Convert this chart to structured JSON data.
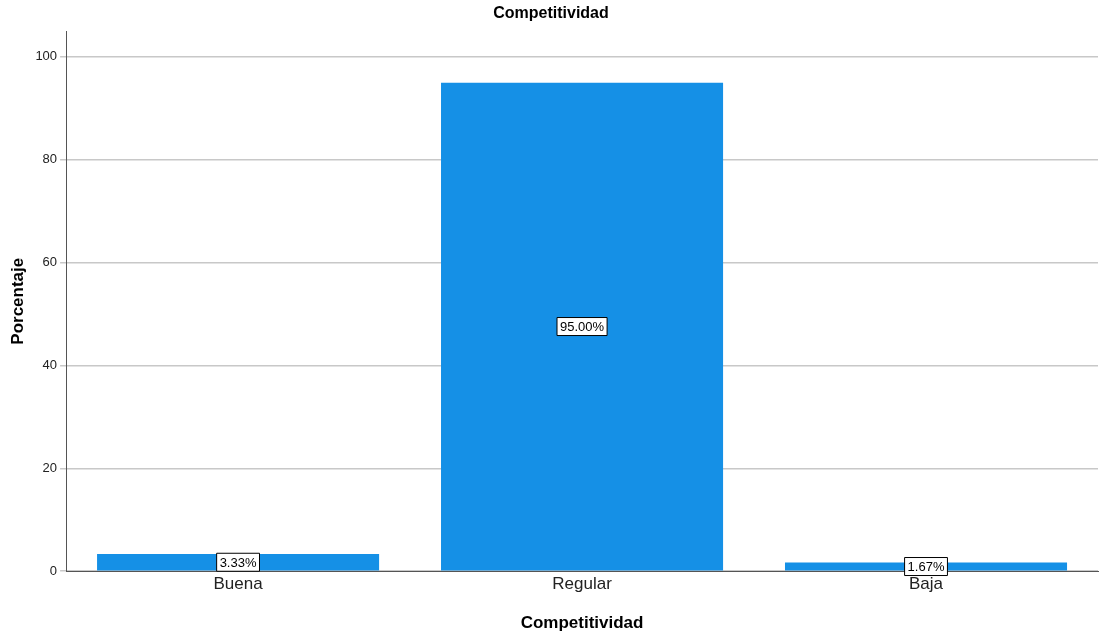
{
  "chart_data": {
    "type": "bar",
    "title": "Competitividad",
    "xlabel": "Competitividad",
    "ylabel": "Porcentaje",
    "categories": [
      "Buena",
      "Regular",
      "Baja"
    ],
    "values": [
      3.33,
      95.0,
      1.67
    ],
    "value_labels": [
      "3.33%",
      "95.00%",
      "1.67%"
    ],
    "color": "#1590e6",
    "ylim": [
      0,
      105
    ],
    "yticks": [
      0,
      20,
      40,
      60,
      80,
      100
    ],
    "grid": "y"
  }
}
